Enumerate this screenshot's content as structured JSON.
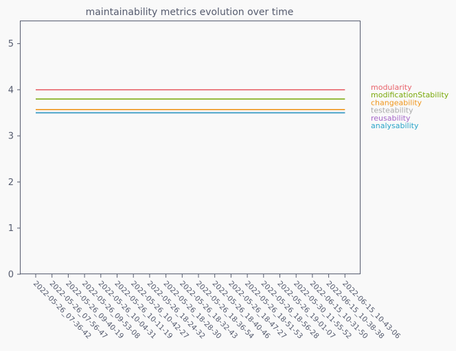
{
  "chart_data": {
    "type": "line",
    "title": "maintainability metrics evolution over time",
    "xlabel": "",
    "ylabel": "",
    "ylim": [
      0,
      5.5
    ],
    "yticks": [
      0,
      1,
      2,
      3,
      4,
      5
    ],
    "grid": false,
    "legend_position": "right",
    "categories": [
      "2022-05-26_07-36-42",
      "2022-05-26_07-56-47",
      "2022-05-26_09-40-19",
      "2022-05-26_09-53-08",
      "2022-05-26_10-04-31",
      "2022-05-26_10-11-19",
      "2022-05-26_10-42-27",
      "2022-05-26_18-24-32",
      "2022-05-26_18-28-30",
      "2022-05-26_18-32-43",
      "2022-05-26_18-36-54",
      "2022-05-26_18-40-46",
      "2022-05-26_18-47-27",
      "2022-05-26_18-51-53",
      "2022-05-26_18-56-28",
      "2022-05-26_19-01-07",
      "2022-05-30_11-55-52",
      "2022-06-15_10-31-50",
      "2022-06-15_10-38-38",
      "2022-06-15_10-43-06"
    ],
    "series": [
      {
        "name": "modularity",
        "color": "#e8636b",
        "values": [
          4.0,
          4.0,
          4.0,
          4.0,
          4.0,
          4.0,
          4.0,
          4.0,
          4.0,
          4.0,
          4.0,
          4.0,
          4.0,
          4.0,
          4.0,
          4.0,
          4.0,
          4.0,
          4.0,
          4.0
        ]
      },
      {
        "name": "modificationStability",
        "color": "#7aa90a",
        "values": [
          3.8,
          3.8,
          3.8,
          3.8,
          3.8,
          3.8,
          3.8,
          3.8,
          3.8,
          3.8,
          3.8,
          3.8,
          3.8,
          3.8,
          3.8,
          3.8,
          3.8,
          3.8,
          3.8,
          3.8
        ]
      },
      {
        "name": "changeability",
        "color": "#f0961c",
        "values": [
          3.57,
          3.57,
          3.57,
          3.57,
          3.57,
          3.57,
          3.57,
          3.57,
          3.57,
          3.57,
          3.57,
          3.57,
          3.57,
          3.57,
          3.57,
          3.57,
          3.57,
          3.57,
          3.57,
          3.57
        ]
      },
      {
        "name": "testeability",
        "color": "#aaaaaa",
        "values": [
          3.5,
          3.5,
          3.5,
          3.5,
          3.5,
          3.5,
          3.5,
          3.5,
          3.5,
          3.5,
          3.5,
          3.5,
          3.5,
          3.5,
          3.5,
          3.5,
          3.5,
          3.5,
          3.5,
          3.5
        ]
      },
      {
        "name": "reusability",
        "color": "#a567c8",
        "values": [
          3.5,
          3.5,
          3.5,
          3.5,
          3.5,
          3.5,
          3.5,
          3.5,
          3.5,
          3.5,
          3.5,
          3.5,
          3.5,
          3.5,
          3.5,
          3.5,
          3.5,
          3.5,
          3.5,
          3.5
        ]
      },
      {
        "name": "analysability",
        "color": "#2aa4c8",
        "values": [
          3.5,
          3.5,
          3.5,
          3.5,
          3.5,
          3.5,
          3.5,
          3.5,
          3.5,
          3.5,
          3.5,
          3.5,
          3.5,
          3.5,
          3.5,
          3.5,
          3.5,
          3.5,
          3.5,
          3.5
        ]
      }
    ]
  }
}
